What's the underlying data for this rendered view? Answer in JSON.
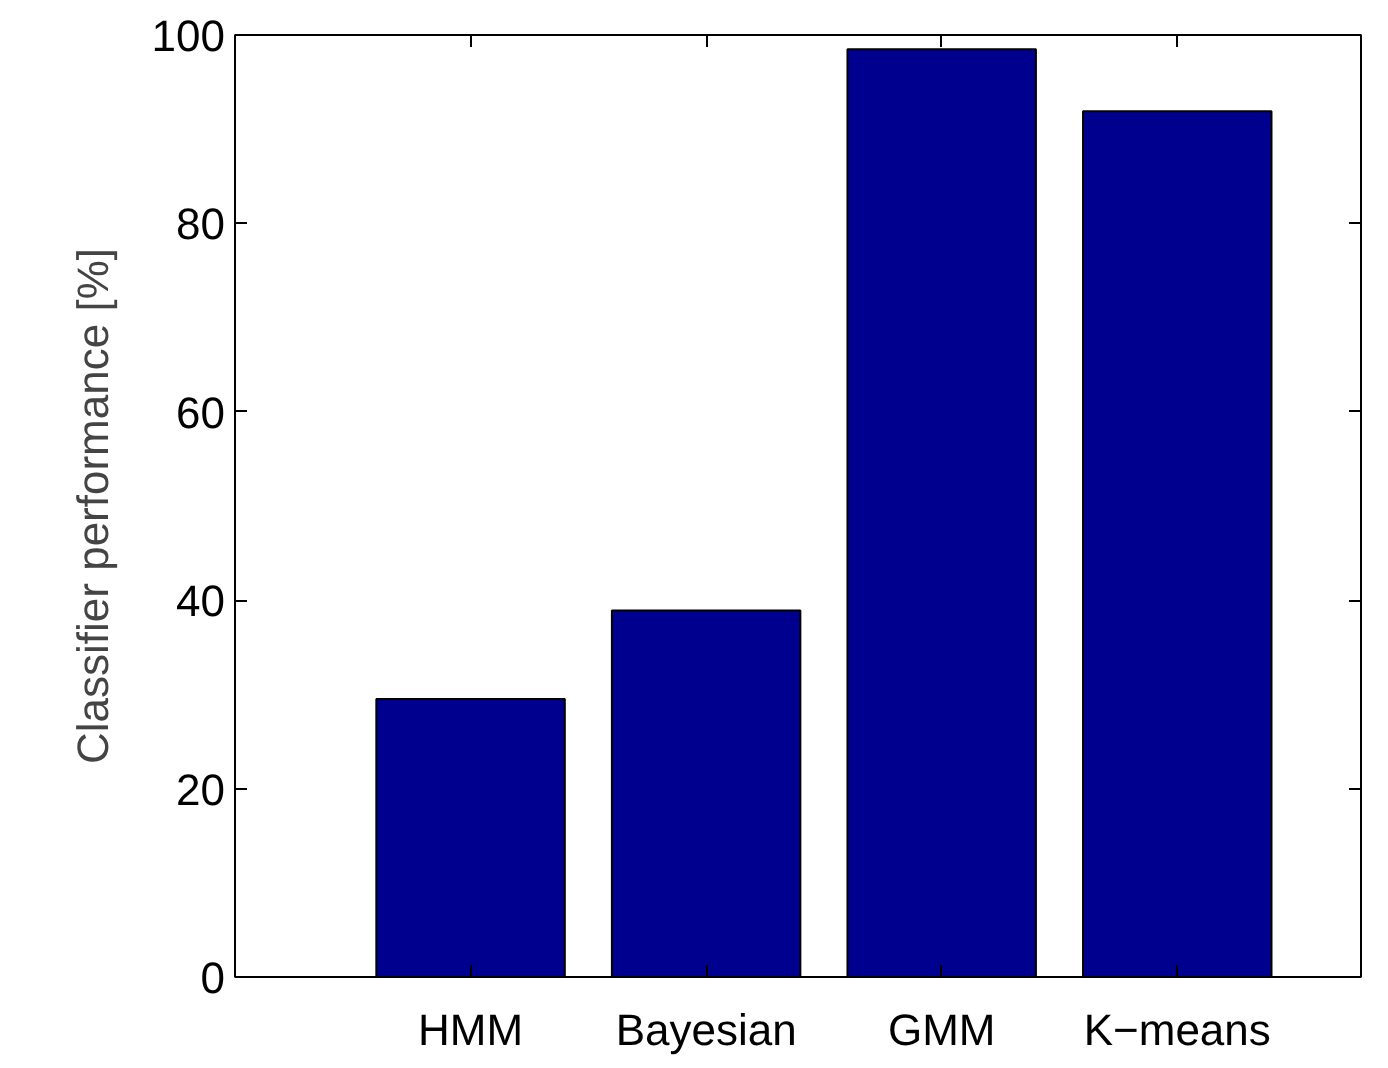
{
  "chart_data": {
    "type": "bar",
    "ylabel": "Classifier performance [%]",
    "categories": [
      "HMM",
      "Bayesian",
      "GMM",
      "K−means"
    ],
    "values": [
      29.5,
      38.9,
      98.5,
      91.9
    ],
    "color": "#00008f",
    "ylim": [
      0,
      100
    ],
    "yticks": [
      0,
      20,
      40,
      60,
      80,
      100
    ],
    "grid": false
  }
}
